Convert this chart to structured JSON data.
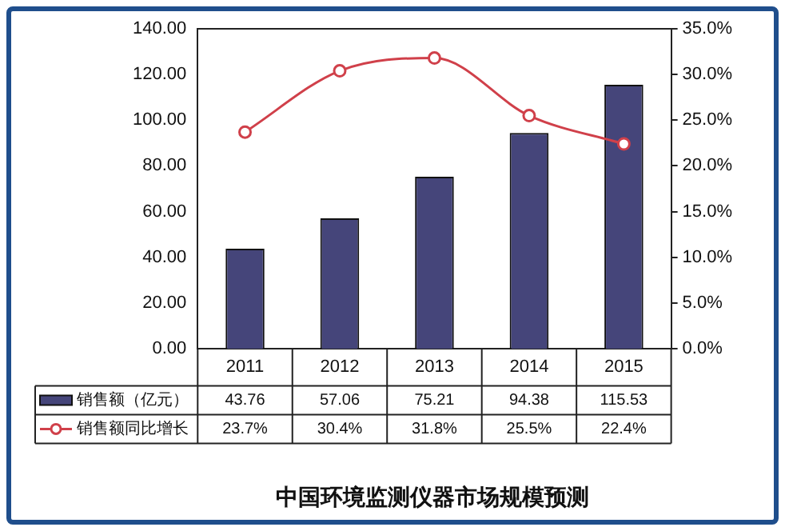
{
  "chart_data": {
    "type": "bar",
    "title": "中国环境监测仪器市场规模预测",
    "categories": [
      "2011",
      "2012",
      "2013",
      "2014",
      "2015"
    ],
    "series": [
      {
        "name": "销售额（亿元）",
        "color": "#45457a",
        "values": [
          43.76,
          57.06,
          75.21,
          94.38,
          115.53
        ],
        "value_labels": [
          "43.76",
          "57.06",
          "75.21",
          "94.38",
          "115.53"
        ]
      },
      {
        "name": "销售额同比增长",
        "type": "line",
        "axis": "y2",
        "color": "#d0404a",
        "values": [
          23.7,
          30.4,
          31.8,
          25.5,
          22.4
        ],
        "value_labels": [
          "23.7%",
          "30.4%",
          "31.8%",
          "25.5%",
          "22.4%"
        ]
      }
    ],
    "ylim": [
      0,
      140
    ],
    "yticks": [
      {
        "value": 0,
        "label": "0.00"
      },
      {
        "value": 20,
        "label": "20.00"
      },
      {
        "value": 40,
        "label": "40.00"
      },
      {
        "value": 60,
        "label": "60.00"
      },
      {
        "value": 80,
        "label": "80.00"
      },
      {
        "value": 100,
        "label": "100.00"
      },
      {
        "value": 120,
        "label": "120.00"
      },
      {
        "value": 140,
        "label": "140.00"
      }
    ],
    "y2lim": [
      0,
      35
    ],
    "y2ticks": [
      {
        "value": 0,
        "label": "0.0%"
      },
      {
        "value": 5,
        "label": "5.0%"
      },
      {
        "value": 10,
        "label": "10.0%"
      },
      {
        "value": 15,
        "label": "15.0%"
      },
      {
        "value": 20,
        "label": "20.0%"
      },
      {
        "value": 25,
        "label": "25.0%"
      },
      {
        "value": 30,
        "label": "30.0%"
      },
      {
        "value": 35,
        "label": "35.0%"
      }
    ],
    "grid": false,
    "legend": "bottom",
    "marker": "circle",
    "line_style": "solid"
  }
}
